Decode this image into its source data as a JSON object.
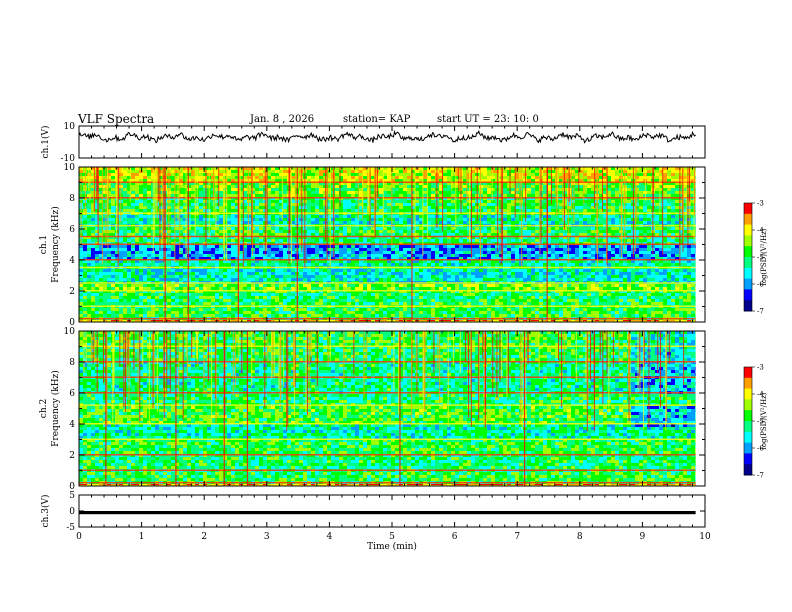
{
  "header": {
    "title": "VLF Spectra",
    "date": "Jan. 8 , 2026",
    "station": "station= KAP",
    "start": "start UT = 23: 10: 0"
  },
  "colors": {
    "colormap": [
      "#00008b",
      "#0000ff",
      "#00a0ff",
      "#00ffff",
      "#00ff80",
      "#00ff00",
      "#a0ff00",
      "#ffff00",
      "#ffa000",
      "#ff0000",
      "#ffffff"
    ],
    "trace": "#000000"
  },
  "chart_data": [
    {
      "type": "line",
      "panel": "ch1-waveform",
      "ylabel": "ch.1(V)",
      "ylim": [
        -10,
        10
      ],
      "yticks": [
        "10",
        "-10"
      ],
      "x_range_min": [
        0,
        9.85
      ],
      "mean": 3,
      "amplitude_approx": 3
    },
    {
      "type": "heatmap",
      "panel": "ch1-spectrogram",
      "ylabel": "ch.1\nFrequency (kHz)",
      "ylim_khz": [
        0,
        10
      ],
      "yticks": [
        "0",
        "2",
        "4",
        "6",
        "8",
        "10"
      ],
      "x_range_min": [
        0,
        9.85
      ],
      "colorbar": {
        "label": "log(PSD)(V²/Hz)",
        "range": [
          -7,
          -3
        ],
        "ticks": [
          "-3",
          "-4",
          "-5",
          "-6",
          "-7"
        ]
      },
      "bands": [
        {
          "khz": [
            0,
            0.2
          ],
          "level": -3.6
        },
        {
          "khz": [
            0.2,
            1.0
          ],
          "level": -4.9
        },
        {
          "khz": [
            1.0,
            2.0
          ],
          "level": -5.0
        },
        {
          "khz": [
            2.0,
            2.5
          ],
          "level": -4.6
        },
        {
          "khz": [
            2.5,
            3.5
          ],
          "level": -5.5
        },
        {
          "khz": [
            3.5,
            4.0
          ],
          "level": -5.3
        },
        {
          "khz": [
            4.0,
            5.0
          ],
          "level": -5.9
        },
        {
          "khz": [
            5.0,
            5.5
          ],
          "level": -5.1
        },
        {
          "khz": [
            5.5,
            6.2
          ],
          "level": -5.0
        },
        {
          "khz": [
            6.2,
            7.0
          ],
          "level": -5.4
        },
        {
          "khz": [
            7.0,
            8.0
          ],
          "level": -5.0
        },
        {
          "khz": [
            8.0,
            9.0
          ],
          "level": -4.7
        },
        {
          "khz": [
            9.0,
            10.0
          ],
          "level": -4.2
        }
      ]
    },
    {
      "type": "heatmap",
      "panel": "ch2-spectrogram",
      "ylabel": "ch.2\nFrequency (kHz)",
      "ylim_khz": [
        0,
        10
      ],
      "yticks": [
        "0",
        "2",
        "4",
        "6",
        "8",
        "10"
      ],
      "x_range_min": [
        0,
        9.85
      ],
      "colorbar": {
        "label": "log(PSD)(V²/Hz)",
        "range": [
          -7,
          -3
        ],
        "ticks": [
          "-3",
          "-4",
          "-5",
          "-6",
          "-7"
        ]
      },
      "bands": [
        {
          "khz": [
            0,
            0.2
          ],
          "level": -3.6
        },
        {
          "khz": [
            0.2,
            1.0
          ],
          "level": -4.9
        },
        {
          "khz": [
            1.0,
            2.0
          ],
          "level": -5.1
        },
        {
          "khz": [
            2.0,
            3.0
          ],
          "level": -4.9
        },
        {
          "khz": [
            3.0,
            4.0
          ],
          "level": -5.3
        },
        {
          "khz": [
            4.0,
            5.2
          ],
          "level": -4.8
        },
        {
          "khz": [
            5.2,
            6.0
          ],
          "level": -5.1
        },
        {
          "khz": [
            6.0,
            7.0
          ],
          "level": -5.2
        },
        {
          "khz": [
            7.0,
            8.0
          ],
          "level": -5.2
        },
        {
          "khz": [
            8.0,
            9.0
          ],
          "level": -5.0
        },
        {
          "khz": [
            9.0,
            10.0
          ],
          "level": -4.9
        }
      ],
      "late_change_min": 8.8
    },
    {
      "type": "line",
      "panel": "ch3-waveform",
      "ylabel": "ch.3(V)",
      "ylim": [
        -5,
        5
      ],
      "yticks": [
        "5",
        "0",
        "-5"
      ],
      "x_range_min": [
        0,
        9.85
      ],
      "value": -0.5,
      "thickness_v": 1
    }
  ],
  "xaxis": {
    "label": "Time (min)",
    "range": [
      0,
      10
    ],
    "ticks": [
      "0",
      "1",
      "2",
      "3",
      "4",
      "5",
      "6",
      "7",
      "8",
      "9",
      "10"
    ]
  }
}
